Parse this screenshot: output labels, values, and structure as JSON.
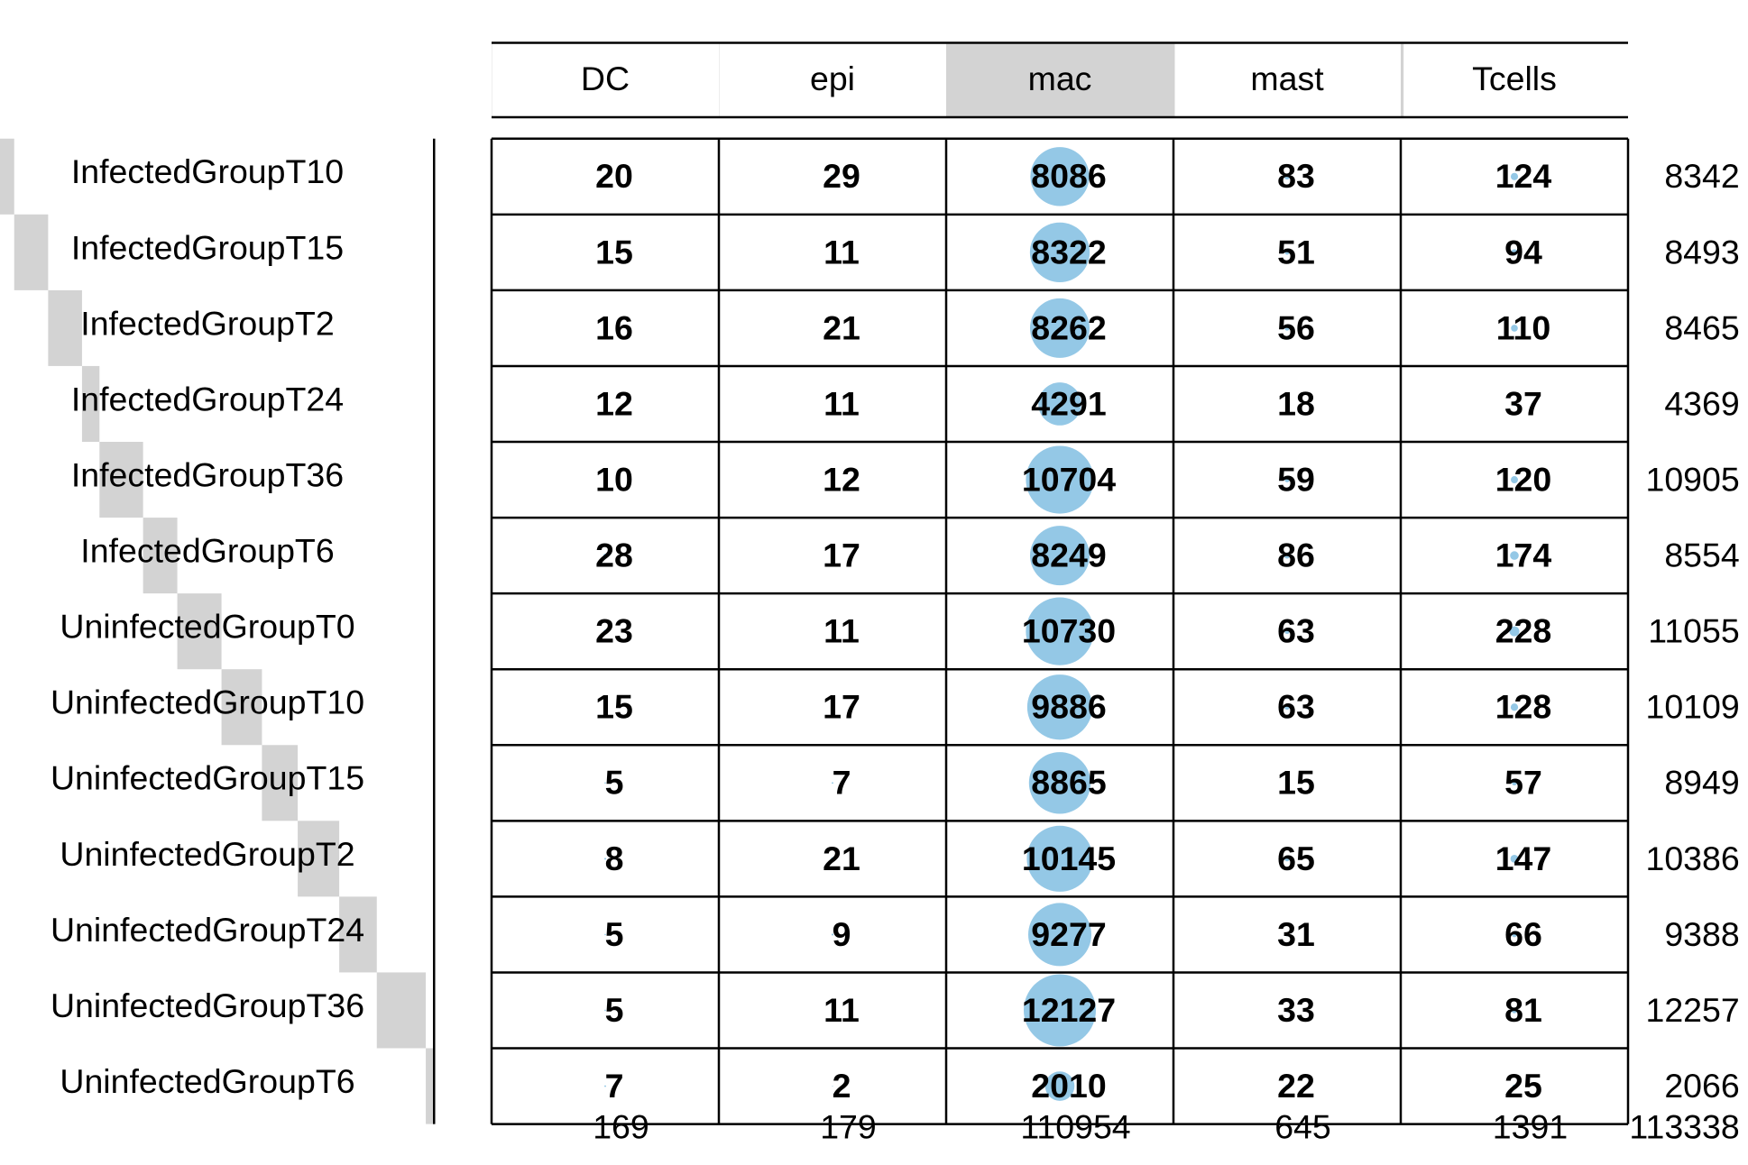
{
  "chart_data": {
    "type": "balloon",
    "columns": [
      "DC",
      "epi",
      "mac",
      "mast",
      "Tcells"
    ],
    "rows": [
      "InfectedGroupT10",
      "InfectedGroupT15",
      "InfectedGroupT2",
      "InfectedGroupT24",
      "InfectedGroupT36",
      "InfectedGroupT6",
      "UninfectedGroupT0",
      "UninfectedGroupT10",
      "UninfectedGroupT15",
      "UninfectedGroupT2",
      "UninfectedGroupT24",
      "UninfectedGroupT36",
      "UninfectedGroupT6"
    ],
    "values": [
      [
        20,
        29,
        8086,
        83,
        124
      ],
      [
        15,
        11,
        8322,
        51,
        94
      ],
      [
        16,
        21,
        8262,
        56,
        110
      ],
      [
        12,
        11,
        4291,
        18,
        37
      ],
      [
        10,
        12,
        10704,
        59,
        120
      ],
      [
        28,
        17,
        8249,
        86,
        174
      ],
      [
        23,
        11,
        10730,
        63,
        228
      ],
      [
        15,
        17,
        9886,
        63,
        128
      ],
      [
        5,
        7,
        8865,
        15,
        57
      ],
      [
        8,
        21,
        10145,
        65,
        147
      ],
      [
        5,
        9,
        9277,
        31,
        66
      ],
      [
        5,
        11,
        12127,
        33,
        81
      ],
      [
        7,
        2,
        2010,
        22,
        25
      ]
    ],
    "row_totals": [
      8342,
      8493,
      8465,
      4369,
      10905,
      8554,
      11055,
      10109,
      8949,
      10386,
      9388,
      12257,
      2066
    ],
    "column_totals": [
      169,
      179,
      110954,
      645,
      1391
    ],
    "grand_total": 113338,
    "balloon_color": "#94c8e6",
    "bar_color": "#d3d3d3"
  }
}
